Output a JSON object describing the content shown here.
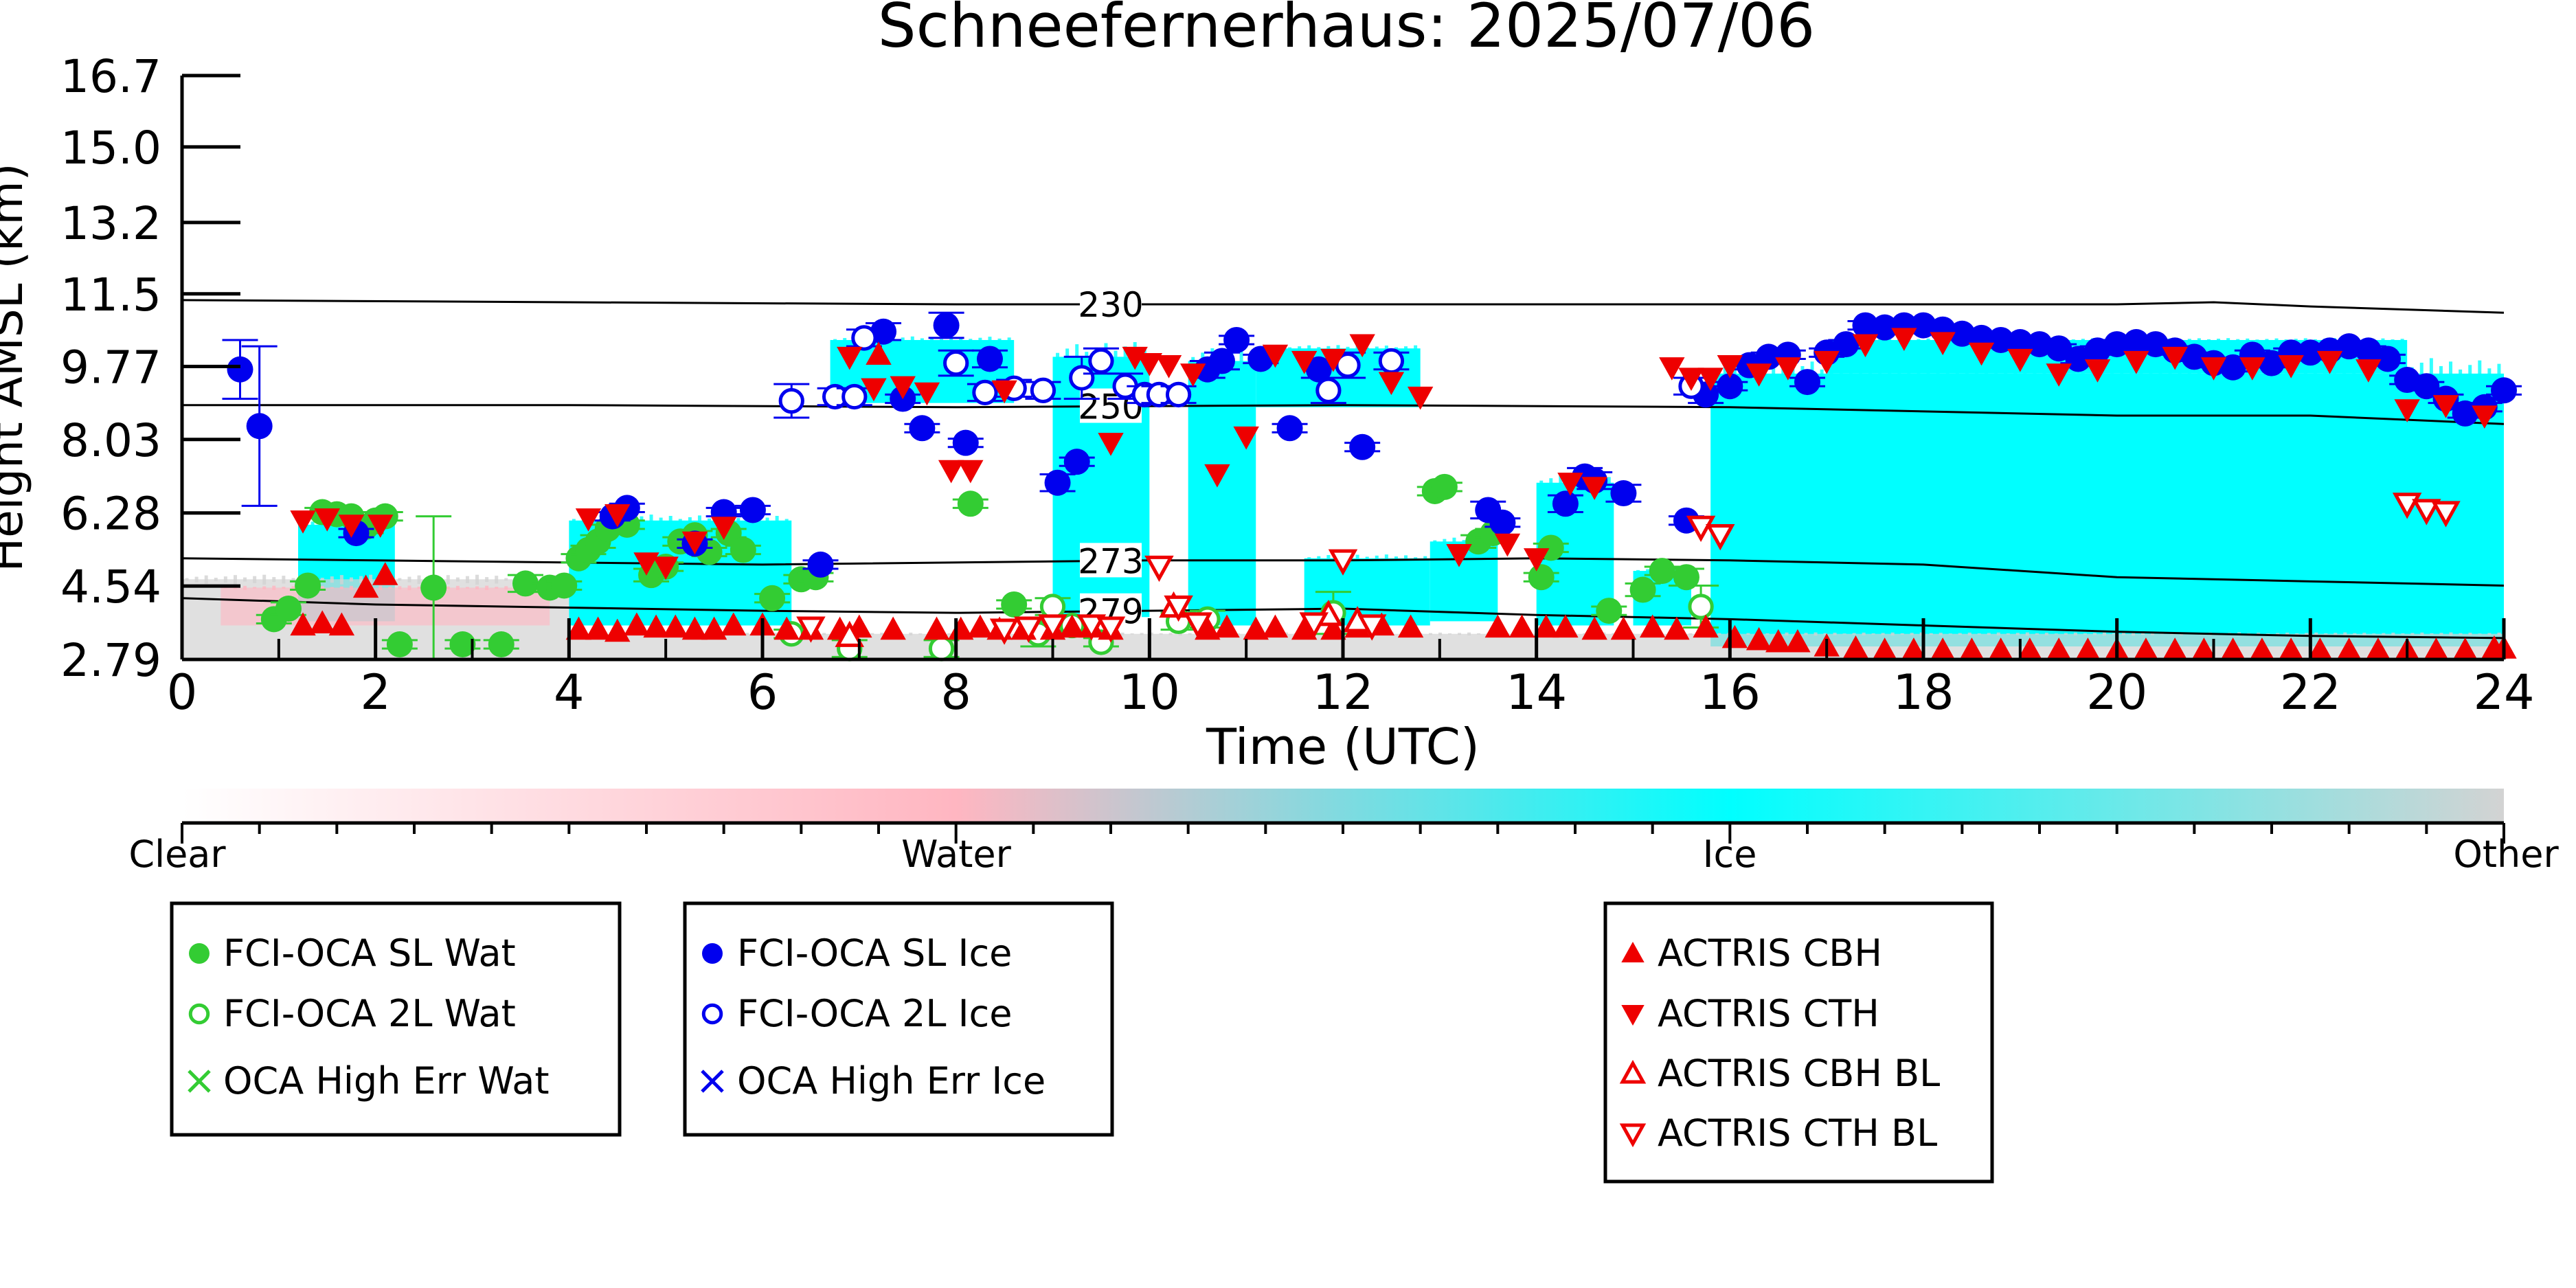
{
  "chart_data": {
    "type": "scatter",
    "title": "Schneefernerhaus: 2025/07/06",
    "xlabel": "Time (UTC)",
    "ylabel": "Height AMSL (km)",
    "xlim": [
      0,
      24
    ],
    "ylim": [
      2.79,
      16.7
    ],
    "x_ticks": [
      0,
      2,
      4,
      6,
      8,
      10,
      12,
      14,
      16,
      18,
      20,
      22,
      24
    ],
    "y_ticks": [
      "2.79",
      "4.54",
      "6.28",
      "8.03",
      "9.77",
      "11.5",
      "13.2",
      "15.0",
      "16.7"
    ],
    "grid": false,
    "colorbar": {
      "labels": [
        "Clear",
        "Water",
        "Ice",
        "Other"
      ],
      "colors": [
        "#ffffff",
        "#ffb6c1",
        "#00ffff",
        "#d3d3d3"
      ]
    },
    "isotherms": [
      {
        "label": "230",
        "x": [
          0,
          4,
          8,
          12,
          16,
          20,
          21,
          22,
          24
        ],
        "y": [
          11.35,
          11.3,
          11.25,
          11.25,
          11.25,
          11.25,
          11.3,
          11.2,
          11.05
        ]
      },
      {
        "label": "250",
        "x": [
          0,
          4,
          8,
          12,
          16,
          18,
          20,
          22,
          24
        ],
        "y": [
          8.85,
          8.85,
          8.8,
          8.85,
          8.8,
          8.7,
          8.6,
          8.6,
          8.4
        ]
      },
      {
        "label": "273",
        "x": [
          0,
          2,
          6,
          10,
          12,
          14,
          16,
          18,
          20,
          22,
          24
        ],
        "y": [
          5.2,
          5.15,
          5.05,
          5.15,
          5.15,
          5.2,
          5.15,
          5.05,
          4.75,
          4.65,
          4.55
        ]
      },
      {
        "label": "279",
        "x": [
          0,
          2,
          6,
          8,
          10,
          12,
          14,
          16,
          18,
          20,
          22,
          24
        ],
        "y": [
          4.25,
          4.1,
          3.95,
          3.9,
          3.95,
          4.0,
          3.85,
          3.75,
          3.6,
          3.45,
          3.35,
          3.3
        ]
      }
    ],
    "series": [
      {
        "name": "FCI-OCA SL Wat",
        "marker": "filled-circle",
        "color": "#33cc33",
        "x": [
          0.95,
          1.1,
          1.3,
          1.45,
          1.6,
          1.75,
          1.9,
          2.0,
          2.1,
          2.25,
          2.6,
          2.9,
          3.3,
          3.55,
          3.8,
          3.95,
          4.1,
          4.2,
          4.3,
          4.4,
          4.6,
          4.85,
          5.0,
          5.15,
          5.3,
          5.45,
          5.65,
          5.8,
          6.1,
          6.4,
          6.55,
          8.15,
          8.6,
          12.95,
          13.05,
          13.4,
          13.55,
          14.05,
          14.15,
          14.75,
          15.1,
          15.3,
          15.55
        ],
        "y": [
          3.75,
          4.0,
          4.55,
          6.3,
          6.25,
          6.2,
          5.95,
          6.1,
          6.2,
          3.15,
          4.5,
          3.15,
          3.15,
          4.6,
          4.5,
          4.55,
          5.2,
          5.4,
          5.6,
          5.9,
          6.0,
          4.8,
          5.0,
          5.6,
          5.75,
          5.35,
          5.8,
          5.4,
          4.25,
          4.7,
          4.75,
          6.5,
          4.1,
          6.8,
          6.9,
          5.6,
          5.8,
          4.75,
          5.45,
          3.95,
          4.45,
          4.9,
          4.75
        ],
        "error": [
          0.1,
          0.15,
          0.1,
          0.1,
          0.1,
          0.1,
          0.15,
          0.1,
          0.1,
          0.1,
          1.7,
          0.1,
          0.1,
          0.2,
          0.1,
          0.1,
          0.1,
          0.1,
          0.15,
          0.1,
          0.1,
          0.15,
          0.1,
          0.1,
          0.1,
          0.1,
          0.1,
          0.1,
          0.1,
          0.1,
          0.1,
          0.1,
          0.1,
          0.1,
          0.1,
          0.15,
          0.1,
          0.1,
          0.1,
          0.1,
          0.15,
          0.1,
          0.2
        ]
      },
      {
        "name": "FCI-OCA 2L Wat",
        "marker": "open-circle",
        "color": "#33cc33",
        "x": [
          6.3,
          6.9,
          7.85,
          8.85,
          9.0,
          9.2,
          9.5,
          10.3,
          10.6,
          11.9,
          15.7
        ],
        "y": [
          3.4,
          3.05,
          3.05,
          3.4,
          4.05,
          3.6,
          3.2,
          3.7,
          3.75,
          3.9,
          4.05
        ],
        "error": [
          0.1,
          0.2,
          0.2,
          0.3,
          0.2,
          0.2,
          0.1,
          0.2,
          0.2,
          0.5,
          0.5
        ]
      },
      {
        "name": "OCA High Err Wat",
        "marker": "x",
        "color": "#33cc33",
        "x": [],
        "y": []
      },
      {
        "name": "FCI-OCA SL Ice",
        "marker": "filled-circle",
        "color": "#0000ee",
        "x": [
          0.6,
          0.8,
          1.8,
          4.45,
          4.6,
          5.3,
          5.6,
          5.9,
          6.6,
          7.25,
          7.45,
          7.65,
          7.9,
          8.1,
          8.35,
          9.05,
          9.25,
          10.6,
          10.75,
          10.9,
          11.15,
          11.45,
          11.75,
          12.2,
          13.5,
          13.65,
          14.3,
          14.5,
          14.6,
          14.9,
          15.55,
          15.75,
          16.0,
          16.2,
          16.4,
          16.6,
          16.8,
          17.0,
          17.2,
          17.4,
          17.6,
          17.8,
          18.0,
          18.2,
          18.4,
          18.6,
          18.8,
          19.0,
          19.2,
          19.4,
          19.6,
          19.8,
          20.0,
          20.2,
          20.4,
          20.6,
          20.8,
          21.0,
          21.2,
          21.4,
          21.6,
          21.8,
          22.0,
          22.2,
          22.4,
          22.6,
          22.8,
          23.0,
          23.2,
          23.4,
          23.6,
          23.8,
          24.0
        ],
        "y": [
          9.7,
          8.35,
          5.8,
          6.2,
          6.4,
          5.55,
          6.3,
          6.35,
          5.05,
          10.6,
          9.0,
          8.3,
          10.75,
          7.95,
          9.95,
          7.0,
          7.5,
          9.7,
          9.9,
          10.4,
          9.95,
          8.3,
          9.7,
          7.85,
          6.35,
          6.05,
          6.5,
          7.15,
          7.05,
          6.75,
          6.1,
          9.1,
          9.3,
          9.8,
          10.0,
          10.05,
          9.4,
          10.1,
          10.3,
          10.75,
          10.7,
          10.75,
          10.75,
          10.65,
          10.55,
          10.45,
          10.4,
          10.35,
          10.3,
          10.2,
          9.95,
          10.15,
          10.3,
          10.35,
          10.3,
          10.15,
          10.0,
          9.85,
          9.75,
          10.05,
          9.85,
          10.1,
          10.1,
          10.15,
          10.25,
          10.15,
          9.95,
          9.45,
          9.3,
          9.0,
          8.65,
          8.8,
          9.2
        ],
        "error": [
          0.7,
          1.9,
          0.1,
          0.1,
          0.1,
          0.1,
          0.1,
          0.1,
          0.1,
          0.2,
          0.1,
          0.1,
          0.3,
          0.1,
          0.2,
          0.2,
          0.1,
          0.2,
          0.2,
          0.1,
          0.1,
          0.1,
          0.2,
          0.1,
          0.2,
          0.1,
          0.2,
          0.2,
          0.2,
          0.2,
          0.1,
          0.2,
          0.1,
          0.1,
          0.1,
          0.1,
          0.1,
          0.1,
          0.1,
          0.1,
          0.1,
          0.1,
          0.1,
          0.1,
          0.1,
          0.1,
          0.1,
          0.1,
          0.1,
          0.1,
          0.1,
          0.1,
          0.1,
          0.1,
          0.1,
          0.1,
          0.1,
          0.1,
          0.1,
          0.1,
          0.1,
          0.1,
          0.1,
          0.1,
          0.1,
          0.1,
          0.1,
          0.1,
          0.1,
          0.1,
          0.1,
          0.1,
          0.1
        ]
      },
      {
        "name": "FCI-OCA 2L Ice",
        "marker": "open-circle",
        "color": "#0000ee",
        "x": [
          6.3,
          6.75,
          6.95,
          7.05,
          8.0,
          8.3,
          8.6,
          8.9,
          9.3,
          9.5,
          9.75,
          9.95,
          10.1,
          10.3,
          11.85,
          12.05,
          12.5,
          15.6
        ],
        "y": [
          8.95,
          9.05,
          9.05,
          10.45,
          9.85,
          9.15,
          9.25,
          9.2,
          9.5,
          9.9,
          9.3,
          9.1,
          9.1,
          9.1,
          9.2,
          9.8,
          9.9,
          9.3
        ],
        "error": [
          0.4,
          0.2,
          0.2,
          0.2,
          0.3,
          0.2,
          0.2,
          0.2,
          0.5,
          0.3,
          0.3,
          0.2,
          0.2,
          0.2,
          0.3,
          0.3,
          0.2,
          0.2
        ]
      },
      {
        "name": "OCA High Err Ice",
        "marker": "x",
        "color": "#0000ee",
        "x": [],
        "y": []
      },
      {
        "name": "ACTRIS CBH",
        "marker": "filled-triangle-up",
        "color": "#ee0000",
        "x": [
          1.25,
          1.45,
          1.65,
          1.9,
          2.1,
          4.1,
          4.3,
          4.5,
          4.7,
          4.9,
          5.1,
          5.3,
          5.5,
          5.7,
          6.0,
          6.25,
          6.5,
          6.8,
          7.0,
          7.2,
          7.35,
          7.8,
          8.05,
          8.25,
          8.45,
          8.7,
          9.0,
          9.2,
          9.4,
          9.6,
          10.6,
          10.8,
          11.1,
          11.3,
          11.6,
          11.9,
          12.15,
          12.4,
          12.7,
          13.6,
          13.85,
          14.1,
          14.3,
          14.6,
          14.9,
          15.2,
          15.45,
          15.75,
          16.05,
          16.3,
          16.5,
          16.7,
          17.0,
          17.3,
          17.6,
          17.9,
          18.2,
          18.5,
          18.8,
          19.1,
          19.4,
          19.7,
          20.0,
          20.3,
          20.6,
          20.9,
          21.2,
          21.5,
          21.8,
          22.1,
          22.4,
          22.7,
          23.0,
          23.3,
          23.6,
          23.9,
          24.0
        ],
        "y": [
          3.6,
          3.65,
          3.6,
          4.5,
          4.8,
          3.5,
          3.5,
          3.45,
          3.6,
          3.55,
          3.55,
          3.5,
          3.5,
          3.6,
          3.6,
          3.5,
          3.5,
          3.5,
          3.55,
          10.05,
          3.5,
          3.5,
          3.5,
          3.55,
          3.5,
          3.5,
          3.5,
          3.55,
          3.55,
          3.5,
          3.5,
          3.55,
          3.5,
          3.55,
          3.5,
          3.5,
          3.55,
          3.6,
          3.55,
          3.55,
          3.55,
          3.55,
          3.55,
          3.5,
          3.5,
          3.55,
          3.5,
          3.55,
          3.3,
          3.25,
          3.2,
          3.2,
          3.1,
          3.05,
          3.0,
          3.0,
          3.0,
          3.0,
          3.0,
          3.0,
          3.0,
          3.0,
          3.0,
          3.0,
          3.0,
          3.0,
          3.0,
          3.0,
          3.0,
          3.0,
          3.0,
          3.0,
          3.0,
          3.0,
          3.0,
          3.05,
          3.05
        ]
      },
      {
        "name": "ACTRIS CTH",
        "marker": "filled-triangle-down",
        "color": "#ee0000",
        "x": [
          1.25,
          1.5,
          1.75,
          2.05,
          4.2,
          4.5,
          4.8,
          5.0,
          5.3,
          5.6,
          6.9,
          7.15,
          7.45,
          7.7,
          7.95,
          8.15,
          8.5,
          9.6,
          9.85,
          10.0,
          10.2,
          10.45,
          10.7,
          11.0,
          11.3,
          11.6,
          11.9,
          12.2,
          12.5,
          12.8,
          13.2,
          13.7,
          14.0,
          14.35,
          14.6,
          15.4,
          15.6,
          15.8,
          16.0,
          16.3,
          16.6,
          17.0,
          17.4,
          17.8,
          18.2,
          18.6,
          19.0,
          19.4,
          19.8,
          20.2,
          20.6,
          21.0,
          21.4,
          21.8,
          22.2,
          22.6,
          23.0,
          23.4,
          23.8
        ],
        "y": [
          6.1,
          6.15,
          6.0,
          6.0,
          6.15,
          6.25,
          5.1,
          5.0,
          5.6,
          5.95,
          10.0,
          9.25,
          9.3,
          9.15,
          7.3,
          7.3,
          9.2,
          7.95,
          10.0,
          9.85,
          9.8,
          9.6,
          7.2,
          8.1,
          10.05,
          9.9,
          9.95,
          10.3,
          9.4,
          9.05,
          5.3,
          5.55,
          5.2,
          7.0,
          6.9,
          9.75,
          9.5,
          9.5,
          9.8,
          9.6,
          9.75,
          9.9,
          10.3,
          10.45,
          10.35,
          10.1,
          9.95,
          9.6,
          9.7,
          9.9,
          10.0,
          9.75,
          9.75,
          9.8,
          9.9,
          9.7,
          8.75,
          8.85,
          8.6
        ]
      },
      {
        "name": "ACTRIS CBH BL",
        "marker": "open-triangle-up",
        "color": "#ee0000",
        "x": [
          6.9,
          10.25,
          11.85,
          12.15
        ],
        "y": [
          3.35,
          4.05,
          3.85,
          3.7
        ]
      },
      {
        "name": "ACTRIS CTH BL",
        "marker": "open-triangle-down",
        "color": "#ee0000",
        "x": [
          6.5,
          8.5,
          8.75,
          9.0,
          9.4,
          9.6,
          10.1,
          10.3,
          10.5,
          11.7,
          12.0,
          12.3,
          15.7,
          15.9,
          23.0,
          23.2,
          23.4
        ],
        "y": [
          3.55,
          3.5,
          3.55,
          3.6,
          3.6,
          3.55,
          5.0,
          4.05,
          3.65,
          3.65,
          5.15,
          3.6,
          5.95,
          5.75,
          6.5,
          6.35,
          6.3
        ]
      }
    ],
    "cloud_regions": [
      {
        "kind": "ice",
        "color": "#00ffff",
        "x0": 1.2,
        "x1": 2.2,
        "y0": 3.7,
        "y1": 6.0
      },
      {
        "kind": "ice",
        "color": "#00ffff",
        "x0": 4.0,
        "x1": 6.3,
        "y0": 3.6,
        "y1": 6.1
      },
      {
        "kind": "ice",
        "color": "#00ffff",
        "x0": 6.7,
        "x1": 8.6,
        "y0": 8.9,
        "y1": 10.4
      },
      {
        "kind": "ice",
        "color": "#00ffff",
        "x0": 9.0,
        "x1": 10.0,
        "y0": 3.8,
        "y1": 10.0
      },
      {
        "kind": "ice",
        "color": "#00ffff",
        "x0": 10.4,
        "x1": 11.1,
        "y0": 3.6,
        "y1": 9.9
      },
      {
        "kind": "ice",
        "color": "#00ffff",
        "x0": 11.1,
        "x1": 12.8,
        "y0": 8.8,
        "y1": 10.2
      },
      {
        "kind": "ice",
        "color": "#00ffff",
        "x0": 11.6,
        "x1": 12.9,
        "y0": 3.6,
        "y1": 5.2
      },
      {
        "kind": "ice",
        "color": "#00ffff",
        "x0": 12.9,
        "x1": 13.6,
        "y0": 3.7,
        "y1": 5.6
      },
      {
        "kind": "ice",
        "color": "#00ffff",
        "x0": 14.0,
        "x1": 14.8,
        "y0": 3.6,
        "y1": 7.0
      },
      {
        "kind": "ice",
        "color": "#00ffff",
        "x0": 15.0,
        "x1": 15.6,
        "y0": 3.6,
        "y1": 4.9
      },
      {
        "kind": "ice",
        "color": "#00ffff",
        "x0": 15.8,
        "x1": 24.0,
        "y0": 3.1,
        "y1": 9.6
      },
      {
        "kind": "ice",
        "color": "#00ffff",
        "x0": 17.0,
        "x1": 23.0,
        "y0": 9.6,
        "y1": 10.4
      },
      {
        "kind": "other",
        "color": "#d3d3d3",
        "x0": 0.0,
        "x1": 4.0,
        "y0": 2.79,
        "y1": 4.7
      },
      {
        "kind": "other",
        "color": "#d3d3d3",
        "x0": 4.0,
        "x1": 24.0,
        "y0": 2.79,
        "y1": 3.4
      },
      {
        "kind": "water",
        "color": "#ffb6c1",
        "x0": 0.4,
        "x1": 3.8,
        "y0": 3.6,
        "y1": 4.5
      }
    ]
  }
}
